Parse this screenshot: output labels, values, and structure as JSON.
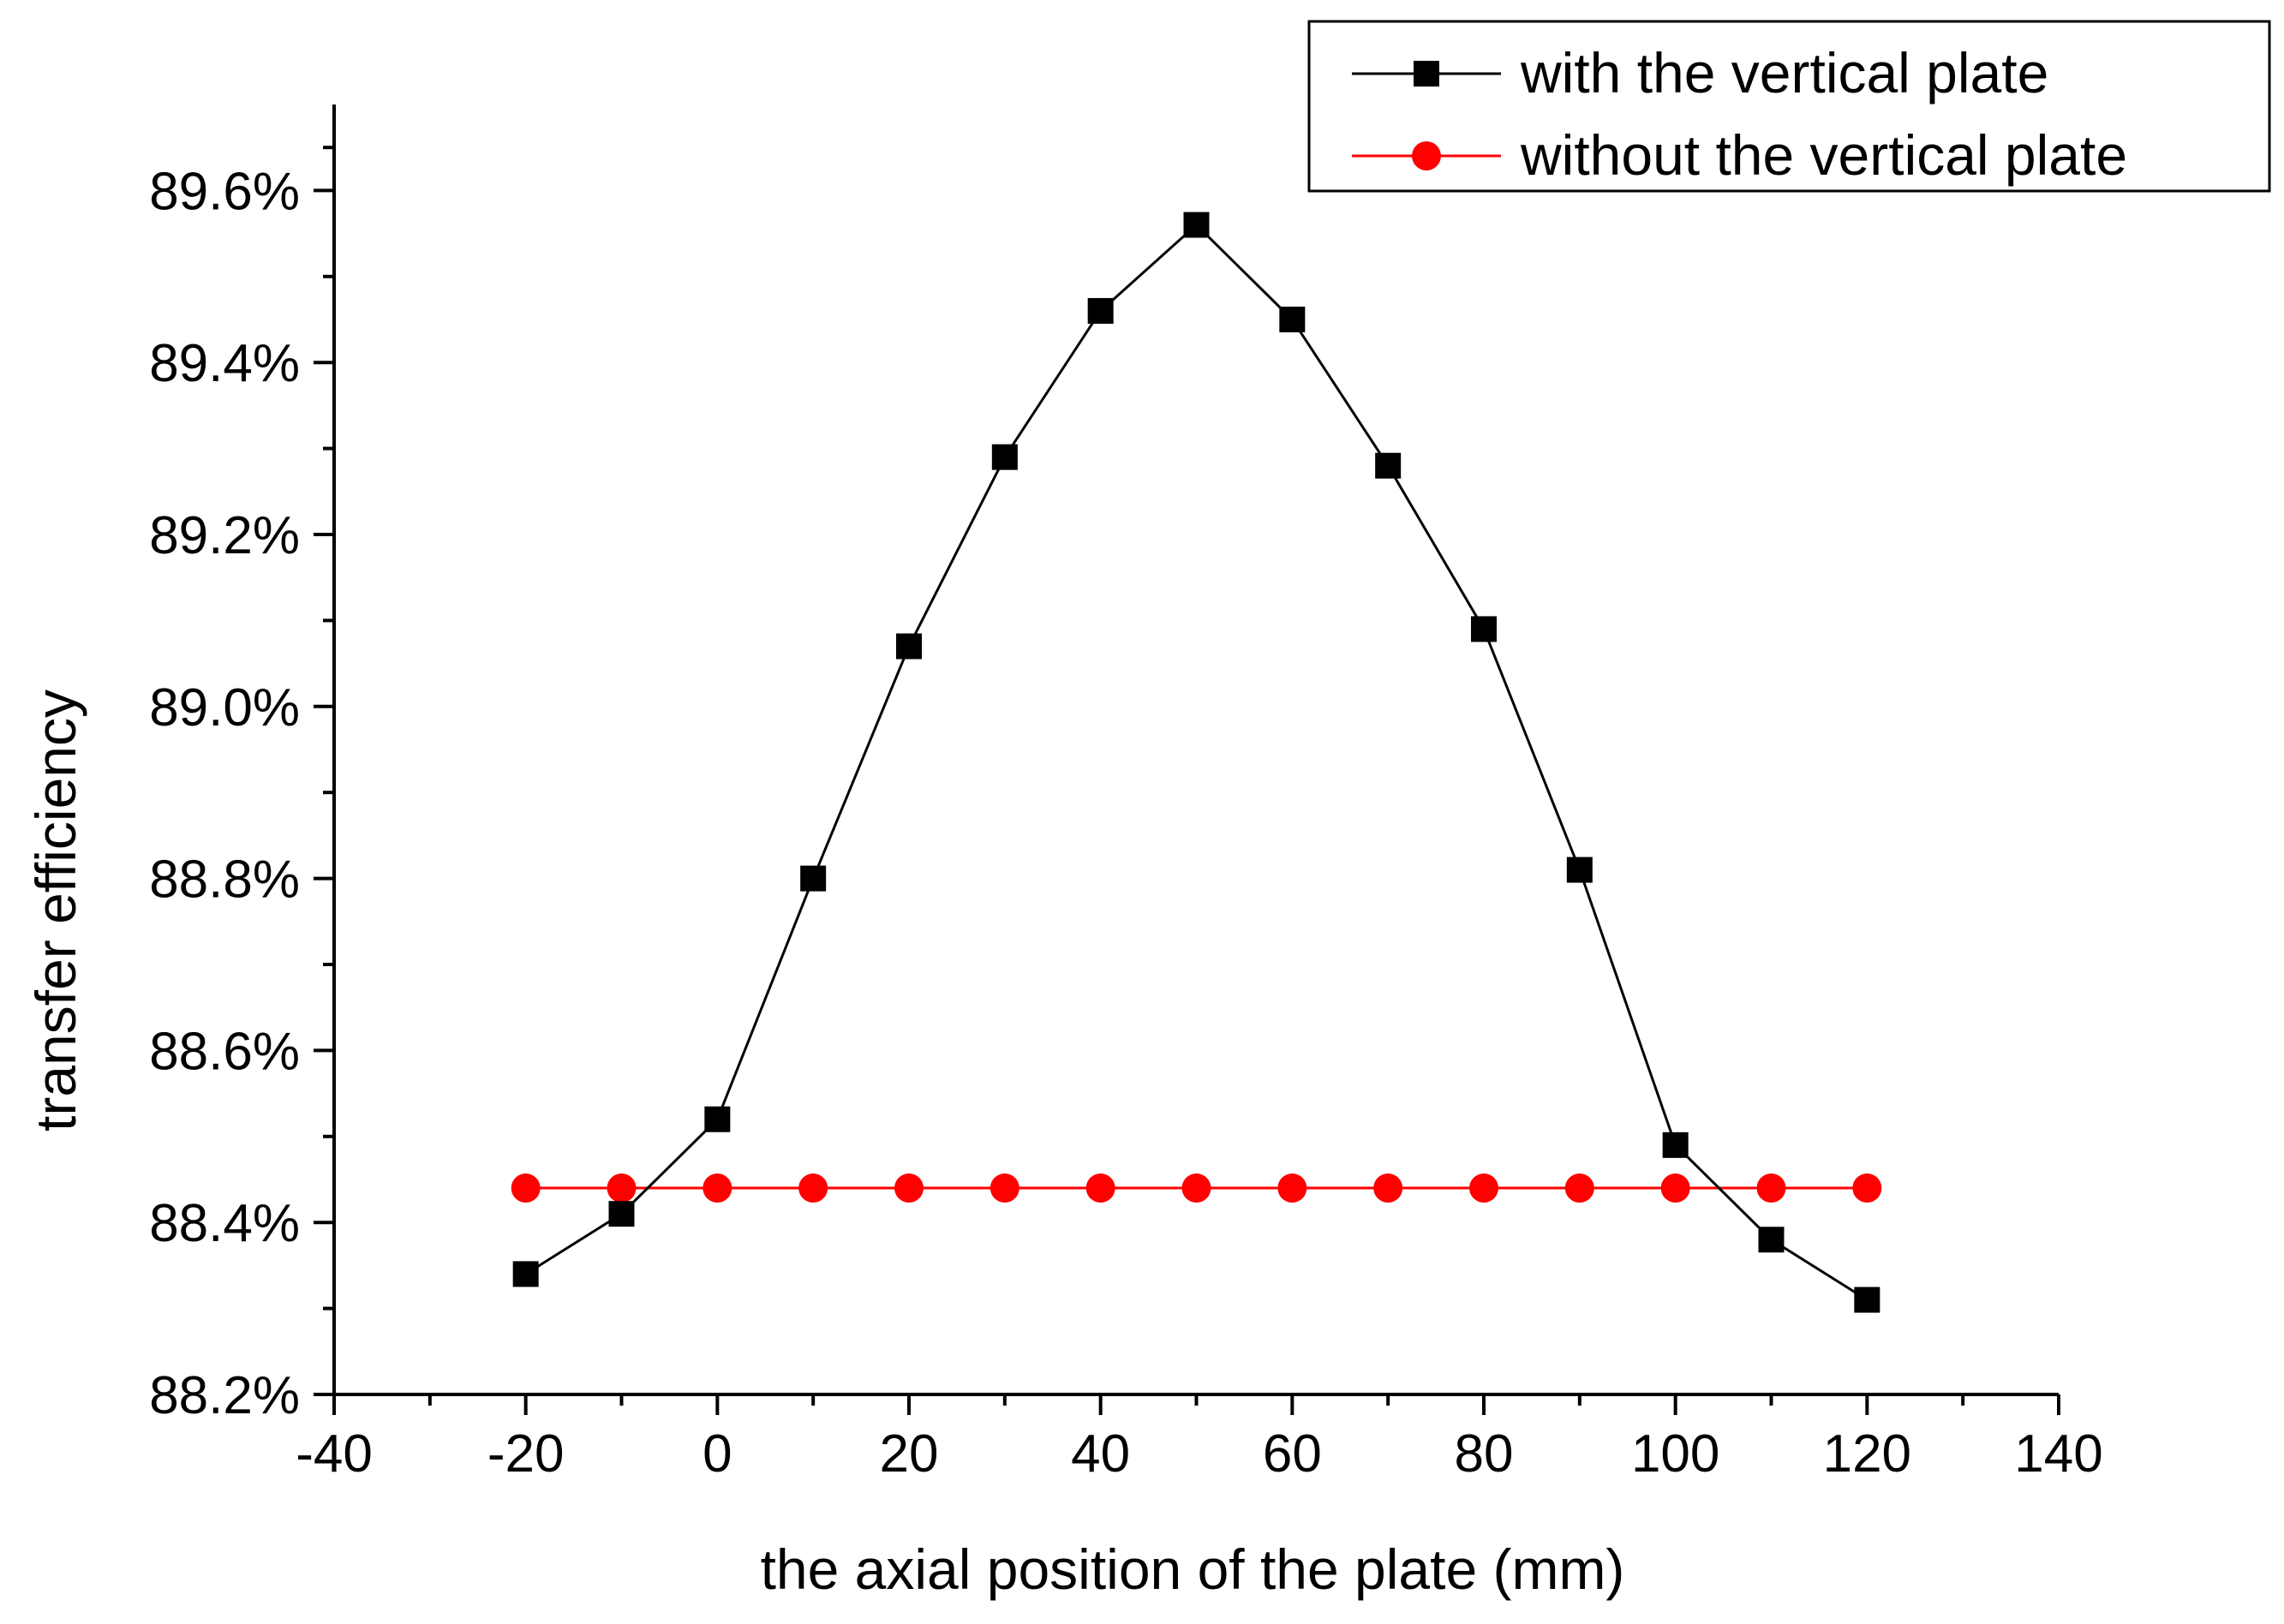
{
  "chart_data": {
    "type": "line",
    "title": "",
    "xlabel": "the axial position of the plate (mm)",
    "ylabel": "transfer efficiency",
    "xlim": [
      -40,
      140
    ],
    "ylim": [
      88.2,
      89.7
    ],
    "x_ticks": [
      -40,
      -20,
      0,
      20,
      40,
      60,
      80,
      100,
      120,
      140
    ],
    "x_tick_labels": [
      "-40",
      "-20",
      "0",
      "20",
      "40",
      "60",
      "80",
      "100",
      "120",
      "140"
    ],
    "y_ticks": [
      88.2,
      88.4,
      88.6,
      88.8,
      89.0,
      89.2,
      89.4,
      89.6
    ],
    "y_tick_labels": [
      "88.2%",
      "88.4%",
      "88.6%",
      "88.8%",
      "89.0%",
      "89.2%",
      "89.4%",
      "89.6%"
    ],
    "grid": false,
    "legend_position": "top-right",
    "x": [
      -20,
      -10,
      0,
      10,
      20,
      30,
      40,
      50,
      60,
      70,
      80,
      90,
      100,
      110,
      120
    ],
    "series": [
      {
        "name": "with the vertical plate",
        "color": "#000000",
        "marker": "square",
        "values": [
          88.34,
          88.41,
          88.52,
          88.8,
          89.07,
          89.29,
          89.46,
          89.56,
          89.45,
          89.28,
          89.09,
          88.81,
          88.49,
          88.38,
          88.31
        ]
      },
      {
        "name": "without the vertical plate",
        "color": "#ff0000",
        "marker": "circle",
        "values": [
          88.44,
          88.44,
          88.44,
          88.44,
          88.44,
          88.44,
          88.44,
          88.44,
          88.44,
          88.44,
          88.44,
          88.44,
          88.44,
          88.44,
          88.44
        ]
      }
    ]
  }
}
